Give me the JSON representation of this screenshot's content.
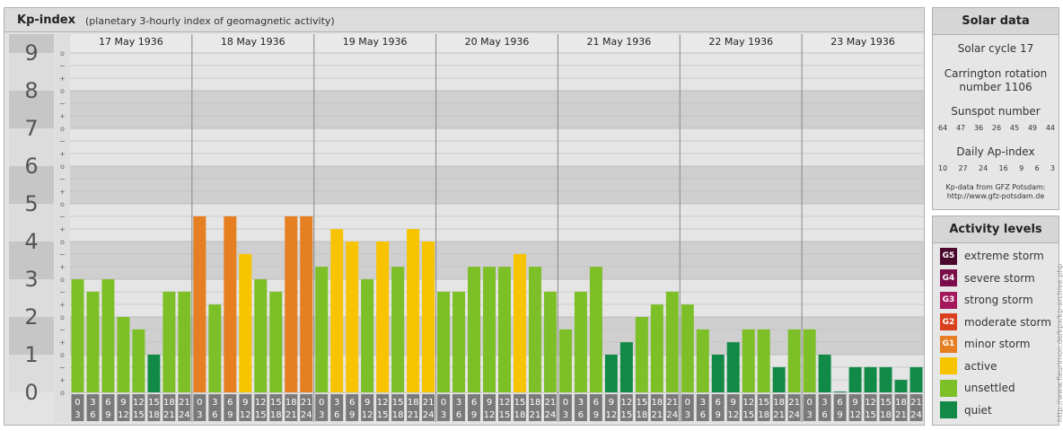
{
  "header": {
    "title": "Kp-index",
    "subtitle": "(planetary 3-hourly index of geomagnetic activity)"
  },
  "solar": {
    "title": "Solar data",
    "cycle": "Solar cycle 17",
    "carrington_line1": "Carrington rotation",
    "carrington_line2": "number 1106",
    "sunspot_title": "Sunspot number",
    "sunspot_values": [
      "64",
      "47",
      "36",
      "26",
      "45",
      "49",
      "44"
    ],
    "ap_title": "Daily Ap-index",
    "ap_values": [
      "10",
      "27",
      "24",
      "16",
      "9",
      "6",
      "3"
    ],
    "source_line1": "Kp-data from GFZ Potsdam:",
    "source_line2": "http://www.gfz-potsdam.de"
  },
  "activity": {
    "title": "Activity levels",
    "levels": [
      {
        "badge": "G5",
        "label": "extreme storm",
        "color": "#4b0a2d"
      },
      {
        "badge": "G4",
        "label": "severe storm",
        "color": "#7a0d4a"
      },
      {
        "badge": "G3",
        "label": "strong storm",
        "color": "#a3185c"
      },
      {
        "badge": "G2",
        "label": "moderate storm",
        "color": "#d9401e"
      },
      {
        "badge": "G1",
        "label": "minor storm",
        "color": "#e67e22"
      },
      {
        "badge": "",
        "label": "active",
        "color": "#f8c300"
      },
      {
        "badge": "",
        "label": "unsettled",
        "color": "#7cbf26"
      },
      {
        "badge": "",
        "label": "quiet",
        "color": "#128a47"
      }
    ]
  },
  "watermark": "http://www.fleurimon.de/kpx/kp-archive.php",
  "chart_data": {
    "type": "bar",
    "title": "Kp-index",
    "subtitle": "(planetary 3-hourly index of geomagnetic activity)",
    "ylim": [
      0,
      9
    ],
    "y_tick_labels": [
      "0",
      "1",
      "2",
      "3",
      "4",
      "5",
      "6",
      "7",
      "8",
      "9"
    ],
    "y_minor_labels": [
      "o",
      "+",
      "−"
    ],
    "days": [
      "17 May 1936",
      "18 May 1936",
      "19 May 1936",
      "20 May 1936",
      "21 May 1936",
      "22 May 1936",
      "23 May 1936"
    ],
    "hour_ticks_top": [
      "0",
      "3",
      "6",
      "9",
      "12",
      "15",
      "18",
      "21"
    ],
    "hour_ticks_bottom": [
      "3",
      "6",
      "9",
      "12",
      "15",
      "18",
      "21",
      "24"
    ],
    "values": [
      3.0,
      2.67,
      3.0,
      2.0,
      1.67,
      1.0,
      2.67,
      2.67,
      4.67,
      2.33,
      4.67,
      3.67,
      3.0,
      2.67,
      4.67,
      4.67,
      3.33,
      4.33,
      4.0,
      3.0,
      4.0,
      3.33,
      4.33,
      4.0,
      2.67,
      2.67,
      3.33,
      3.33,
      3.33,
      3.67,
      3.33,
      2.67,
      1.67,
      2.67,
      3.33,
      1.0,
      1.33,
      2.0,
      2.33,
      2.67,
      2.33,
      1.67,
      1.0,
      1.33,
      1.67,
      1.67,
      0.67,
      1.67,
      1.67,
      1.0,
      0.0,
      0.67,
      0.67,
      0.67,
      0.33,
      0.67
    ],
    "color_scale": {
      "quiet": "#128a47",
      "unsettled": "#7cbf26",
      "active": "#f8c300",
      "minor_storm": "#e67e22"
    }
  }
}
